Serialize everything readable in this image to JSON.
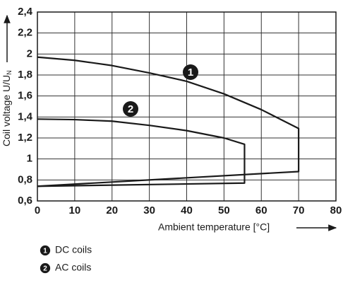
{
  "chart_data": {
    "type": "line",
    "xlabel": "Ambient temperature [°C]",
    "ylabel": "Coil voltage U/U",
    "ylabel_sub": "N",
    "xlim": [
      0,
      80
    ],
    "xticks": [
      0,
      10,
      20,
      30,
      40,
      50,
      60,
      70,
      80
    ],
    "ylim": [
      0.6,
      2.4
    ],
    "yticks": [
      {
        "value": 0.6,
        "label": "0,6"
      },
      {
        "value": 0.8,
        "label": "0,8"
      },
      1,
      {
        "value": 1.2,
        "label": "1,2"
      },
      {
        "value": 1.4,
        "label": "1,4"
      },
      {
        "value": 1.6,
        "label": "1,6"
      },
      {
        "value": 1.8,
        "label": "1,8"
      },
      2,
      {
        "value": 2.2,
        "label": "2,2"
      },
      {
        "value": 2.4,
        "label": "2,4"
      }
    ],
    "grid": true,
    "series": [
      {
        "name": "DC coils",
        "marker": "1",
        "color": "#1a1a1a",
        "x": [
          0,
          10,
          20,
          30,
          40,
          50,
          60,
          70,
          70,
          0
        ],
        "values": [
          1.97,
          1.94,
          1.89,
          1.82,
          1.74,
          1.62,
          1.47,
          1.29,
          0.88,
          0.74
        ]
      },
      {
        "name": "AC coils",
        "marker": "2",
        "color": "#1a1a1a",
        "x": [
          0,
          10,
          20,
          30,
          40,
          50,
          55.5,
          55.5,
          0
        ],
        "values": [
          1.38,
          1.375,
          1.36,
          1.32,
          1.27,
          1.2,
          1.14,
          0.77,
          0.74
        ]
      }
    ]
  }
}
